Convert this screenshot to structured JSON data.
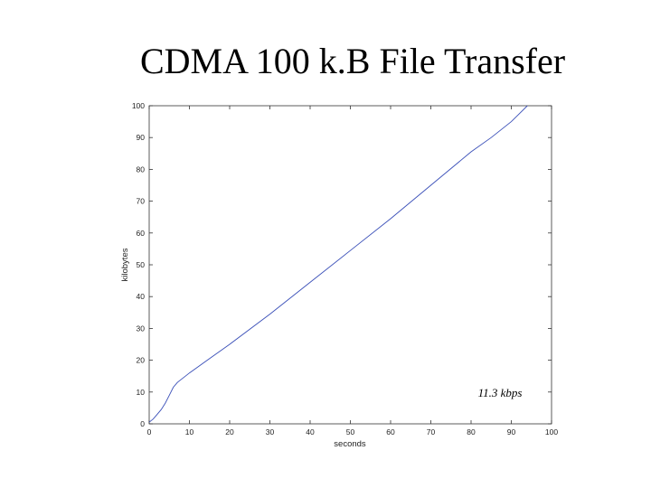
{
  "slide": {
    "title": "CDMA 100 k.B File Transfer"
  },
  "chart_data": {
    "type": "line",
    "title": "",
    "xlabel": "seconds",
    "ylabel": "kilobytes",
    "xlim": [
      0,
      100
    ],
    "ylim": [
      0,
      100
    ],
    "xticks": [
      0,
      10,
      20,
      30,
      40,
      50,
      60,
      70,
      80,
      90,
      100
    ],
    "yticks": [
      0,
      10,
      20,
      30,
      40,
      50,
      60,
      70,
      80,
      90,
      100
    ],
    "grid": false,
    "legend": "none",
    "annotation": "11.3 kbps",
    "series": [
      {
        "color": "#3a4fb8",
        "x": [
          0,
          1,
          2,
          3,
          4,
          5,
          6,
          7,
          8,
          9,
          10,
          15,
          20,
          30,
          40,
          50,
          60,
          70,
          80,
          85,
          90,
          94
        ],
        "y": [
          0.5,
          1.5,
          3,
          4.5,
          6.5,
          9,
          11.5,
          13,
          14,
          15,
          16,
          20.5,
          25,
          34.5,
          44.5,
          54.5,
          64.5,
          75,
          85.5,
          90,
          95,
          100
        ]
      }
    ]
  }
}
